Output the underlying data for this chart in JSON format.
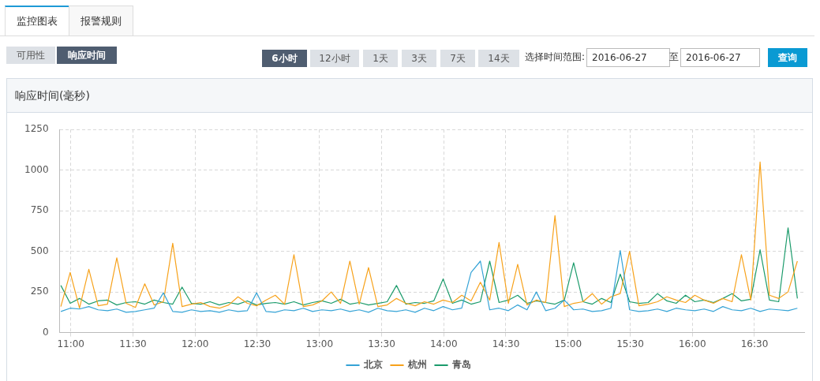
{
  "chart_data": {
    "type": "line",
    "title": "响应时间(毫秒)",
    "annotations": [
      "监控图表",
      "报警规则",
      "可用性",
      "响应时间",
      "6小时",
      "12小时",
      "1天",
      "3天",
      "7天",
      "14天",
      "选择时间范围:",
      "2016-06-27",
      "至",
      "2016-06-27",
      "查询"
    ],
    "x": [
      10.92,
      10.995,
      11.07,
      11.145,
      11.22,
      11.295,
      11.37,
      11.445,
      11.52,
      11.595,
      11.67,
      11.745,
      11.82,
      11.895,
      11.97,
      12.045,
      12.12,
      12.195,
      12.27,
      12.345,
      12.42,
      12.495,
      12.57,
      12.645,
      12.72,
      12.795,
      12.87,
      12.945,
      13.02,
      13.095,
      13.17,
      13.245,
      13.32,
      13.395,
      13.47,
      13.545,
      13.62,
      13.695,
      13.77,
      13.845,
      13.92,
      13.995,
      14.07,
      14.145,
      14.22,
      14.295,
      14.37,
      14.445,
      14.52,
      14.595,
      14.67,
      14.745,
      14.82,
      14.895,
      14.97,
      15.045,
      15.12,
      15.195,
      15.27,
      15.345,
      15.42,
      15.495,
      15.57,
      15.645,
      15.72,
      15.795,
      15.87,
      15.945,
      16.02,
      16.095,
      16.17,
      16.245,
      16.32,
      16.395,
      16.47,
      16.545,
      16.62,
      16.695,
      16.77,
      16.845
    ],
    "series": [
      {
        "name": "北京",
        "color": "#35a3d6",
        "values": [
          130,
          150,
          145,
          160,
          140,
          135,
          145,
          125,
          130,
          140,
          150,
          245,
          130,
          125,
          140,
          130,
          135,
          125,
          140,
          130,
          135,
          245,
          130,
          125,
          140,
          135,
          150,
          130,
          140,
          135,
          145,
          130,
          140,
          125,
          150,
          135,
          130,
          140,
          125,
          150,
          135,
          160,
          140,
          150,
          370,
          440,
          140,
          150,
          135,
          170,
          140,
          250,
          135,
          150,
          200,
          140,
          145,
          130,
          135,
          150,
          505,
          140,
          130,
          135,
          145,
          130,
          150,
          140,
          135,
          145,
          130,
          160,
          140,
          135,
          150,
          130,
          145,
          140,
          135,
          150
        ]
      },
      {
        "name": "杭州",
        "color": "#f7a21b",
        "values": [
          160,
          370,
          150,
          390,
          165,
          175,
          460,
          180,
          155,
          300,
          170,
          190,
          550,
          160,
          175,
          185,
          160,
          150,
          170,
          220,
          180,
          165,
          200,
          230,
          175,
          480,
          160,
          170,
          195,
          250,
          180,
          440,
          175,
          400,
          160,
          170,
          210,
          180,
          165,
          190,
          175,
          200,
          185,
          230,
          195,
          310,
          200,
          555,
          180,
          420,
          170,
          200,
          185,
          720,
          160,
          180,
          190,
          240,
          175,
          220,
          240,
          500,
          165,
          175,
          190,
          220,
          200,
          185,
          230,
          200,
          180,
          210,
          190,
          480,
          200,
          1050,
          230,
          210,
          250,
          440
        ]
      },
      {
        "name": "青岛",
        "color": "#1b9b6b",
        "values": [
          290,
          180,
          210,
          175,
          195,
          200,
          170,
          185,
          190,
          175,
          200,
          185,
          175,
          280,
          180,
          175,
          190,
          170,
          185,
          175,
          195,
          170,
          180,
          185,
          175,
          190,
          170,
          185,
          195,
          180,
          205,
          175,
          185,
          170,
          180,
          190,
          290,
          175,
          185,
          180,
          195,
          330,
          180,
          200,
          175,
          190,
          440,
          185,
          200,
          230,
          180,
          195,
          185,
          175,
          200,
          430,
          190,
          175,
          210,
          185,
          360,
          190,
          180,
          185,
          240,
          195,
          180,
          230,
          190,
          200,
          185,
          210,
          240,
          195,
          205,
          510,
          200,
          190,
          645,
          210
        ]
      }
    ],
    "xlim": [
      10.91,
      16.9
    ],
    "xticks": [
      {
        "value": 11,
        "label": "11:00"
      },
      {
        "value": 11.5,
        "label": "11:30"
      },
      {
        "value": 12,
        "label": "12:00"
      },
      {
        "value": 12.5,
        "label": "12:30"
      },
      {
        "value": 13,
        "label": "13:00"
      },
      {
        "value": 13.5,
        "label": "13:30"
      },
      {
        "value": 14,
        "label": "14:00"
      },
      {
        "value": 14.5,
        "label": "14:30"
      },
      {
        "value": 15,
        "label": "15:00"
      },
      {
        "value": 15.5,
        "label": "15:30"
      },
      {
        "value": 16,
        "label": "16:00"
      },
      {
        "value": 16.5,
        "label": "16:30"
      }
    ],
    "ylim": [
      0,
      1250
    ],
    "yticks": [
      0,
      250,
      500,
      750,
      1000,
      1250
    ],
    "grid": true,
    "legend": "bottom",
    "marker": "none",
    "line_style": "solid"
  }
}
